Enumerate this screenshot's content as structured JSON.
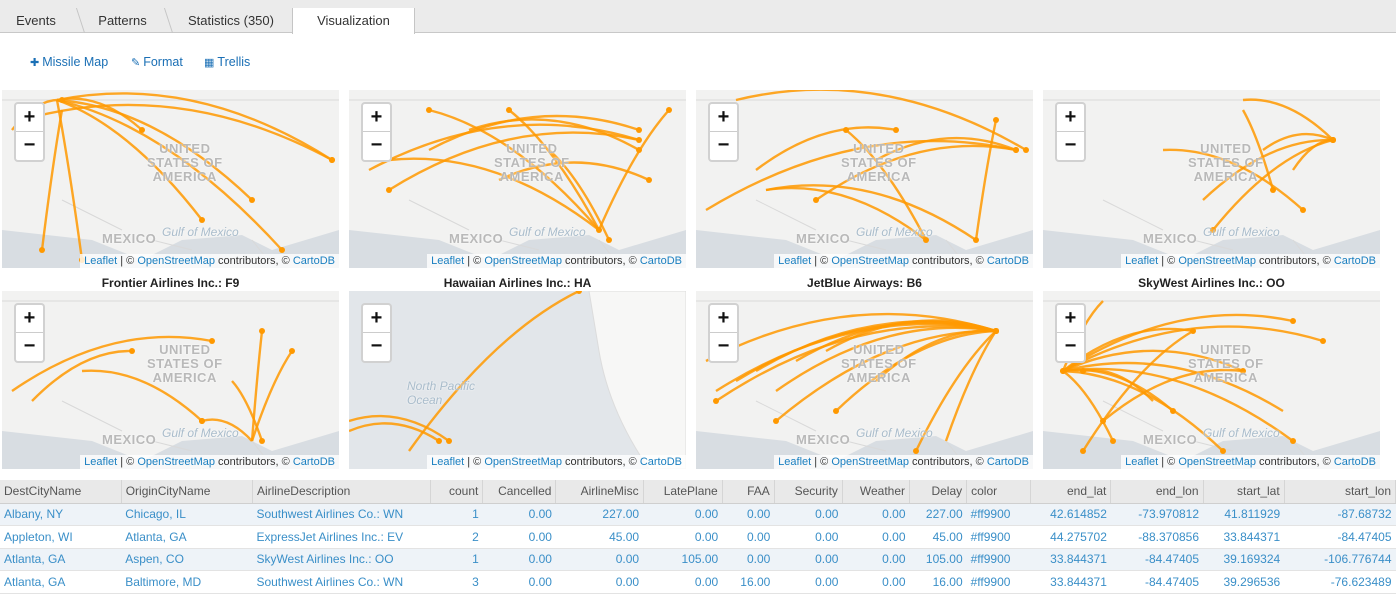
{
  "tabs": [
    {
      "label": "Events"
    },
    {
      "label": "Patterns"
    },
    {
      "label": "Statistics (350)"
    },
    {
      "label": "Visualization"
    }
  ],
  "toolbar": {
    "missile_map": "Missile Map",
    "format": "Format",
    "trellis": "Trellis"
  },
  "map": {
    "zoom_in": "+",
    "zoom_out": "−",
    "attribution_leaflet": "Leaflet",
    "attribution_sep1": " | © ",
    "attribution_osm": "OpenStreetMap",
    "attribution_mid": " contributors, © ",
    "attribution_carto": "CartoDB",
    "label_usa_1": "UNITED",
    "label_usa_2": "STATES OF",
    "label_usa_3": "AMERICA",
    "label_mexico": "MEXICO",
    "label_gulf": "Gulf of Mexico",
    "label_pacific_1": "North Pacific",
    "label_pacific_2": "Ocean",
    "arc_color": "#ff9900"
  },
  "panel_titles": [
    "Frontier Airlines Inc.: F9",
    "Hawaiian Airlines Inc.: HA",
    "JetBlue Airways: B6",
    "SkyWest Airlines Inc.: OO"
  ],
  "table": {
    "columns": [
      "DestCityName",
      "OriginCityName",
      "AirlineDescription",
      "count",
      "Cancelled",
      "AirlineMisc",
      "LatePlane",
      "FAA",
      "Security",
      "Weather",
      "Delay",
      "color",
      "end_lat",
      "end_lon",
      "start_lat",
      "start_lon"
    ],
    "rows": [
      [
        "Albany, NY",
        "Chicago, IL",
        "Southwest Airlines Co.: WN",
        "1",
        "0.00",
        "227.00",
        "0.00",
        "0.00",
        "0.00",
        "0.00",
        "227.00",
        "#ff9900",
        "42.614852",
        "-73.970812",
        "41.811929",
        "-87.68732"
      ],
      [
        "Appleton, WI",
        "Atlanta, GA",
        "ExpressJet Airlines Inc.: EV",
        "2",
        "0.00",
        "45.00",
        "0.00",
        "0.00",
        "0.00",
        "0.00",
        "45.00",
        "#ff9900",
        "44.275702",
        "-88.370856",
        "33.844371",
        "-84.47405"
      ],
      [
        "Atlanta, GA",
        "Aspen, CO",
        "SkyWest Airlines Inc.: OO",
        "1",
        "0.00",
        "0.00",
        "105.00",
        "0.00",
        "0.00",
        "0.00",
        "105.00",
        "#ff9900",
        "33.844371",
        "-84.47405",
        "39.169324",
        "-106.776744"
      ],
      [
        "Atlanta, GA",
        "Baltimore, MD",
        "Southwest Airlines Co.: WN",
        "3",
        "0.00",
        "0.00",
        "0.00",
        "16.00",
        "0.00",
        "0.00",
        "16.00",
        "#ff9900",
        "33.844371",
        "-84.47405",
        "39.296536",
        "-76.623489"
      ]
    ]
  }
}
